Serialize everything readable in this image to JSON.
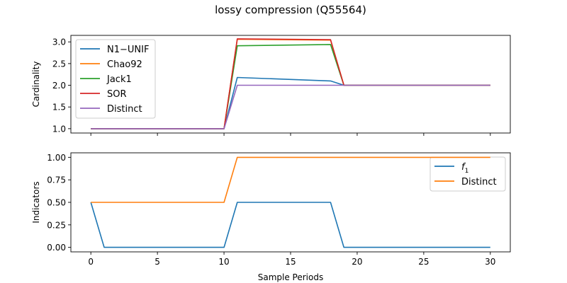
{
  "title": "lossy compression (Q55564)",
  "colors": {
    "blue": "#1f77b4",
    "orange": "#ff7f0e",
    "green": "#2ca02c",
    "red": "#d62728",
    "purple": "#9467bd",
    "axis": "#000000",
    "background": "#ffffff"
  },
  "chart_data": [
    {
      "type": "line",
      "title": "lossy compression (Q55564)",
      "xlabel": "",
      "ylabel": "Cardinality",
      "xlim": [
        -1.5,
        31.5
      ],
      "ylim": [
        0.9,
        3.15
      ],
      "xticks": [
        0,
        5,
        10,
        15,
        20,
        25,
        30
      ],
      "xtick_labels_shown": false,
      "yticks": [
        1.0,
        1.5,
        2.0,
        2.5,
        3.0
      ],
      "ytick_labels": [
        "1.0",
        "1.5",
        "2.0",
        "2.5",
        "3.0"
      ],
      "grid": false,
      "legend_position": "upper left",
      "legend": [
        "N1−UNIF",
        "Chao92",
        "Jack1",
        "SOR",
        "Distinct"
      ],
      "series": [
        {
          "name": "N1−UNIF",
          "color": "#1f77b4",
          "points": [
            [
              0,
              1.0
            ],
            [
              10,
              1.0
            ],
            [
              11,
              2.18
            ],
            [
              18,
              2.1
            ],
            [
              19,
              2.0
            ],
            [
              30,
              2.0
            ]
          ]
        },
        {
          "name": "Chao92",
          "color": "#ff7f0e",
          "points": [
            [
              0,
              1.0
            ],
            [
              10,
              1.0
            ],
            [
              11,
              3.06
            ],
            [
              18,
              3.04
            ],
            [
              19,
              2.0
            ],
            [
              30,
              2.0
            ]
          ]
        },
        {
          "name": "Jack1",
          "color": "#2ca02c",
          "points": [
            [
              0,
              1.0
            ],
            [
              10,
              1.0
            ],
            [
              11,
              2.91
            ],
            [
              18,
              2.94
            ],
            [
              19,
              2.0
            ],
            [
              30,
              2.0
            ]
          ]
        },
        {
          "name": "SOR",
          "color": "#d62728",
          "points": [
            [
              0,
              1.0
            ],
            [
              10,
              1.0
            ],
            [
              11,
              3.07
            ],
            [
              18,
              3.05
            ],
            [
              19,
              2.0
            ],
            [
              30,
              2.0
            ]
          ]
        },
        {
          "name": "Distinct",
          "color": "#9467bd",
          "points": [
            [
              0,
              1.0
            ],
            [
              10,
              1.0
            ],
            [
              11,
              2.0
            ],
            [
              30,
              2.0
            ]
          ]
        }
      ]
    },
    {
      "type": "line",
      "title": "",
      "xlabel": "Sample Periods",
      "ylabel": "Indicators",
      "xlim": [
        -1.5,
        31.5
      ],
      "ylim": [
        -0.05,
        1.05
      ],
      "xticks": [
        0,
        5,
        10,
        15,
        20,
        25,
        30
      ],
      "xtick_labels": [
        "0",
        "5",
        "10",
        "15",
        "20",
        "25",
        "30"
      ],
      "yticks": [
        0.0,
        0.25,
        0.5,
        0.75,
        1.0
      ],
      "ytick_labels": [
        "0.00",
        "0.25",
        "0.50",
        "0.75",
        "1.00"
      ],
      "grid": false,
      "legend_position": "upper right",
      "legend": [
        "f",
        "Distinct"
      ],
      "legend_subscripts": [
        "1",
        ""
      ],
      "series": [
        {
          "name": "f1",
          "color": "#1f77b4",
          "points": [
            [
              0,
              0.5
            ],
            [
              1,
              0.0
            ],
            [
              10,
              0.0
            ],
            [
              11,
              0.5
            ],
            [
              18,
              0.5
            ],
            [
              19,
              0.0
            ],
            [
              30,
              0.0
            ]
          ]
        },
        {
          "name": "Distinct",
          "color": "#ff7f0e",
          "points": [
            [
              0,
              0.5
            ],
            [
              10,
              0.5
            ],
            [
              11,
              1.0
            ],
            [
              30,
              1.0
            ]
          ]
        }
      ]
    }
  ]
}
